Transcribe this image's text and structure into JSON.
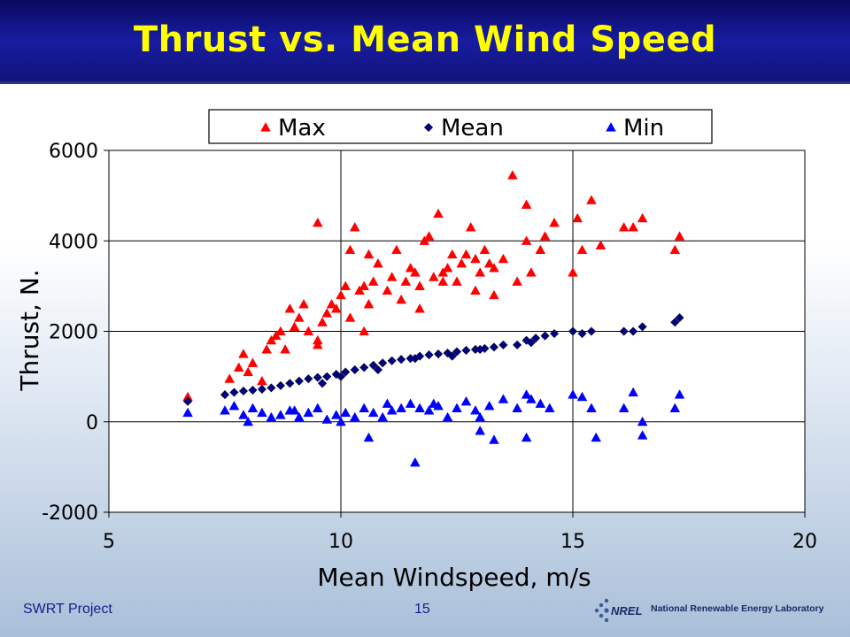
{
  "slide": {
    "title": "Thrust vs. Mean Wind Speed",
    "footer_left": "SWRT Project",
    "page_number": "15",
    "logo_text": "National Renewable Energy Laboratory",
    "logo_wordmark": "NREL"
  },
  "colors": {
    "title_text": "#ffff00",
    "title_bar": "#14167f",
    "max": "#ff0000",
    "mean": "#000080",
    "min": "#0000ff"
  },
  "chart_data": {
    "type": "scatter",
    "xlabel": "Mean Windspeed, m/s",
    "ylabel": "Thrust, N.",
    "xlim": [
      5,
      20
    ],
    "ylim": [
      -2000,
      6000
    ],
    "xticks": [
      5,
      10,
      15,
      20
    ],
    "yticks": [
      -2000,
      0,
      2000,
      4000,
      6000
    ],
    "grid": "vertical lines at 10 and 15, horizontal lines at 0, 2000, 4000",
    "legend_position": "top",
    "series": [
      {
        "name": "Max",
        "marker": "triangle",
        "color": "#ff0000",
        "x": [
          6.7,
          7.6,
          7.8,
          7.9,
          8.0,
          8.1,
          8.3,
          8.4,
          8.5,
          8.6,
          8.7,
          8.8,
          8.9,
          9.0,
          9.1,
          9.2,
          9.3,
          9.5,
          9.5,
          9.6,
          9.7,
          9.8,
          9.9,
          10.0,
          10.1,
          10.2,
          10.3,
          10.4,
          10.5,
          10.6,
          10.7,
          10.8,
          11.0,
          11.1,
          11.2,
          11.3,
          11.4,
          11.5,
          11.6,
          11.7,
          11.8,
          11.9,
          12.0,
          12.1,
          12.2,
          12.3,
          12.4,
          12.5,
          12.6,
          12.7,
          12.8,
          12.9,
          13.0,
          13.1,
          13.2,
          13.3,
          13.5,
          13.7,
          13.8,
          14.0,
          14.0,
          14.1,
          14.3,
          14.4,
          14.6,
          15.0,
          15.1,
          15.2,
          15.4,
          15.6,
          16.1,
          16.3,
          16.5,
          17.2,
          17.3,
          9.5,
          10.2,
          10.6,
          12.2,
          11.7,
          12.9,
          13.3,
          10.5
        ],
        "y": [
          550,
          950,
          1200,
          1500,
          1100,
          1300,
          900,
          1600,
          1800,
          1900,
          2000,
          1600,
          2500,
          2100,
          2300,
          2600,
          2000,
          4400,
          1800,
          2200,
          2400,
          2600,
          2500,
          2800,
          3000,
          3800,
          4300,
          2900,
          3000,
          3700,
          3100,
          3500,
          2900,
          3200,
          3800,
          2700,
          3100,
          3400,
          3300,
          3000,
          4000,
          4100,
          3200,
          4600,
          3300,
          3400,
          3700,
          3100,
          3500,
          3700,
          4300,
          3600,
          3300,
          3800,
          3500,
          3400,
          3600,
          5450,
          3100,
          4000,
          4800,
          3300,
          3800,
          4100,
          4400,
          3300,
          4500,
          3800,
          4900,
          3900,
          4300,
          4300,
          4500,
          3800,
          4100,
          1700,
          2300,
          2600,
          3100,
          2500,
          2900,
          2800,
          2000
        ]
      },
      {
        "name": "Mean",
        "marker": "diamond",
        "color": "#000080",
        "x": [
          6.7,
          7.5,
          7.7,
          7.9,
          8.1,
          8.3,
          8.5,
          8.7,
          8.9,
          9.1,
          9.3,
          9.5,
          9.7,
          9.9,
          10.1,
          10.3,
          10.5,
          10.7,
          10.9,
          11.1,
          11.3,
          11.5,
          11.7,
          11.9,
          12.1,
          12.3,
          12.5,
          12.7,
          12.9,
          13.1,
          13.3,
          13.5,
          13.8,
          14.0,
          14.2,
          14.4,
          14.6,
          15.0,
          15.2,
          15.4,
          16.1,
          16.3,
          16.5,
          17.2,
          17.3,
          9.6,
          10.0,
          10.8,
          11.6,
          12.4,
          13.0,
          14.1
        ],
        "y": [
          450,
          600,
          650,
          680,
          700,
          720,
          750,
          800,
          850,
          900,
          950,
          980,
          1000,
          1050,
          1100,
          1150,
          1200,
          1250,
          1300,
          1350,
          1380,
          1400,
          1450,
          1480,
          1500,
          1520,
          1550,
          1580,
          1600,
          1620,
          1650,
          1700,
          1700,
          1800,
          1850,
          1900,
          1950,
          2000,
          1950,
          2000,
          2000,
          2000,
          2100,
          2200,
          2300,
          850,
          1000,
          1150,
          1400,
          1450,
          1600,
          1750
        ]
      },
      {
        "name": "Min",
        "marker": "triangle",
        "color": "#0000ff",
        "x": [
          6.7,
          7.5,
          7.7,
          7.9,
          8.1,
          8.3,
          8.5,
          8.7,
          8.9,
          9.1,
          9.3,
          9.5,
          9.7,
          9.9,
          10.1,
          10.3,
          10.5,
          10.6,
          10.7,
          10.9,
          11.1,
          11.3,
          11.5,
          11.6,
          11.7,
          11.9,
          12.1,
          12.3,
          12.5,
          12.7,
          12.9,
          13.0,
          13.2,
          13.3,
          13.5,
          13.8,
          14.0,
          14.1,
          14.3,
          14.5,
          15.0,
          15.2,
          15.4,
          15.5,
          16.1,
          16.3,
          16.5,
          16.5,
          17.2,
          17.3,
          8.0,
          9.0,
          10.0,
          11.0,
          12.0,
          13.0,
          14.0
        ],
        "y": [
          200,
          250,
          350,
          150,
          300,
          200,
          100,
          150,
          250,
          100,
          200,
          300,
          50,
          150,
          200,
          100,
          300,
          -350,
          200,
          100,
          250,
          300,
          400,
          -900,
          300,
          250,
          350,
          100,
          300,
          450,
          250,
          -200,
          350,
          -400,
          500,
          300,
          -350,
          500,
          400,
          300,
          600,
          550,
          300,
          -350,
          300,
          650,
          -300,
          0,
          300,
          600,
          0,
          250,
          0,
          400,
          400,
          100,
          600
        ]
      }
    ]
  }
}
